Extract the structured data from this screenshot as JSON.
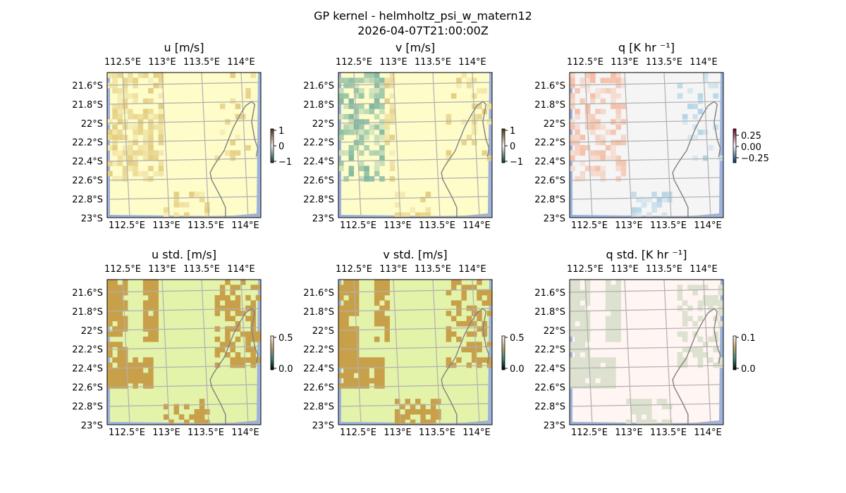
{
  "figure": {
    "suptitle_line1": "GP kernel - helmholtz_psi_w_matern12",
    "suptitle_line2": "2026-04-07T21:00:00Z"
  },
  "colors": {
    "ocean": "#9db3dd",
    "land_u_mean": "#fefcc9",
    "land_v_mean": "#fefcc9",
    "land_q_mean": "#f5f5f5",
    "land_std_uv": "#e4f3aa",
    "land_std_q": "#fff5f2",
    "grid": "#b0b0b0",
    "coast": "#808080"
  },
  "chart_data": [
    {
      "type": "heatmap",
      "title": "u [m/s]",
      "xlabel": "",
      "ylabel": "",
      "lon_ticks": [
        "112.5°E",
        "113°E",
        "113.5°E",
        "114°E"
      ],
      "lat_ticks": [
        "21.6°S",
        "21.8°S",
        "22°S",
        "22.2°S",
        "22.4°S",
        "22.6°S",
        "22.8°S",
        "23°S"
      ],
      "xlim": [
        112.45,
        114.2
      ],
      "ylim": [
        -23.0,
        -21.47
      ],
      "grid": true,
      "colorbar": {
        "ticks": [
          "1",
          "0",
          "−1"
        ],
        "range": [
          -1,
          1
        ],
        "colormap": "BrBG"
      },
      "colors": [
        "#d8b860",
        "#fefcc9",
        "#4a9a8e"
      ]
    },
    {
      "type": "heatmap",
      "title": "v [m/s]",
      "xlabel": "",
      "ylabel": "",
      "lon_ticks": [
        "112.5°E",
        "113°E",
        "113.5°E",
        "114°E"
      ],
      "lat_ticks": [
        "21.6°S",
        "21.8°S",
        "22°S",
        "22.2°S",
        "22.4°S",
        "22.6°S",
        "22.8°S",
        "23°S"
      ],
      "xlim": [
        112.45,
        114.2
      ],
      "ylim": [
        -23.0,
        -21.47
      ],
      "grid": true,
      "colorbar": {
        "ticks": [
          "1",
          "0",
          "−1"
        ],
        "range": [
          -1,
          1
        ],
        "colormap": "BrBG"
      },
      "colors": [
        "#d8b860",
        "#fefcc9",
        "#4a9a8e"
      ]
    },
    {
      "type": "heatmap",
      "title": "q [K hr ⁻¹]",
      "xlabel": "",
      "ylabel": "",
      "lon_ticks": [
        "112.5°E",
        "113°E",
        "113.5°E",
        "114°E"
      ],
      "lat_ticks": [
        "21.6°S",
        "21.8°S",
        "22°S",
        "22.2°S",
        "22.4°S",
        "22.6°S",
        "22.8°S",
        "23°S"
      ],
      "xlim": [
        112.45,
        114.2
      ],
      "ylim": [
        -23.0,
        -21.47
      ],
      "grid": true,
      "colorbar": {
        "ticks": [
          "0.25",
          "0.00",
          "−0.25"
        ],
        "range": [
          -0.35,
          0.35
        ],
        "colormap": "RdBu_r"
      },
      "colors": [
        "#f4a582",
        "#f5f5f5",
        "#92c5de"
      ]
    },
    {
      "type": "heatmap",
      "title": "u std. [m/s]",
      "xlabel": "",
      "ylabel": "",
      "lon_ticks": [
        "112.5°E",
        "113°E",
        "113.5°E",
        "114°E"
      ],
      "lat_ticks": [
        "21.6°S",
        "21.8°S",
        "22°S",
        "22.2°S",
        "22.4°S",
        "22.6°S",
        "22.8°S",
        "23°S"
      ],
      "xlim": [
        112.45,
        114.2
      ],
      "ylim": [
        -23.0,
        -21.47
      ],
      "grid": true,
      "colorbar": {
        "ticks": [
          "0.5",
          "0.0"
        ],
        "range": [
          0,
          0.5
        ],
        "colormap": "gist_earth_r"
      },
      "colors": [
        "#c9a04a",
        "#e4f3aa"
      ]
    },
    {
      "type": "heatmap",
      "title": "v std. [m/s]",
      "xlabel": "",
      "ylabel": "",
      "lon_ticks": [
        "112.5°E",
        "113°E",
        "113.5°E",
        "114°E"
      ],
      "lat_ticks": [
        "21.6°S",
        "21.8°S",
        "22°S",
        "22.2°S",
        "22.4°S",
        "22.6°S",
        "22.8°S",
        "23°S"
      ],
      "xlim": [
        112.45,
        114.2
      ],
      "ylim": [
        -23.0,
        -21.47
      ],
      "grid": true,
      "colorbar": {
        "ticks": [
          "0.5",
          "0.0"
        ],
        "range": [
          0,
          0.5
        ],
        "colormap": "gist_earth_r"
      },
      "colors": [
        "#c9a04a",
        "#e4f3aa"
      ]
    },
    {
      "type": "heatmap",
      "title": "q std. [K hr ⁻¹]",
      "xlabel": "",
      "ylabel": "",
      "lon_ticks": [
        "112.5°E",
        "113°E",
        "113.5°E",
        "114°E"
      ],
      "lat_ticks": [
        "21.6°S",
        "21.8°S",
        "22°S",
        "22.2°S",
        "22.4°S",
        "22.6°S",
        "22.8°S",
        "23°S"
      ],
      "xlim": [
        112.45,
        114.2
      ],
      "ylim": [
        -23.0,
        -21.47
      ],
      "grid": true,
      "colorbar": {
        "ticks": [
          "0.1",
          "0.0"
        ],
        "range": [
          0,
          0.1
        ],
        "colormap": "gist_earth_r"
      },
      "colors": [
        "#dde1cf",
        "#fff5f2"
      ]
    }
  ]
}
